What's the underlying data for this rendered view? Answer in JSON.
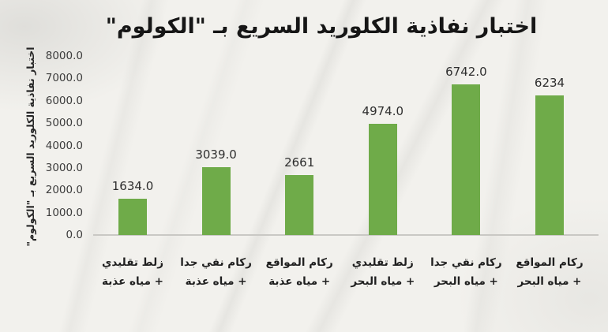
{
  "title": "اختبار نفاذية الكلوريد السريع بـ \"الكولوم\"",
  "y_axis": {
    "title": "اختبار نفاذية الكلوريد السريع بـ \"الكولوم\"",
    "ticks": [
      "8000.0",
      "7000.0",
      "6000.0",
      "5000.0",
      "4000.0",
      "3000.0",
      "2000.0",
      "1000.0",
      "0.0"
    ]
  },
  "chart_data": {
    "type": "bar",
    "title": "اختبار نفاذية الكلوريد السريع بـ \"الكولوم\"",
    "ylabel": "اختبار نفاذية الكلوريد السريع بـ \"الكولوم\"",
    "xlabel": "",
    "ylim": [
      0,
      8000
    ],
    "grid": false,
    "legend": "none",
    "bar_color": "#6fab49",
    "categories": [
      {
        "line1": "زلط تقليدي",
        "line2": "+ مياه عذبة"
      },
      {
        "line1": "ركام نقي جدا",
        "line2": "+ مياه عذبة"
      },
      {
        "line1": "ركام المواقع",
        "line2": "+ مياه عذبة"
      },
      {
        "line1": "زلط تقليدي",
        "line2": "+ مياه البحر"
      },
      {
        "line1": "ركام نقي جدا",
        "line2": "+ مياه البحر"
      },
      {
        "line1": "ركام المواقع",
        "line2": "+ مياه البحر"
      }
    ],
    "values": [
      1634,
      3039,
      2661,
      4974,
      6742,
      6234
    ],
    "value_labels": [
      "1634.0",
      "3039.0",
      "2661",
      "4974.0",
      "6742.0",
      "6234"
    ]
  }
}
